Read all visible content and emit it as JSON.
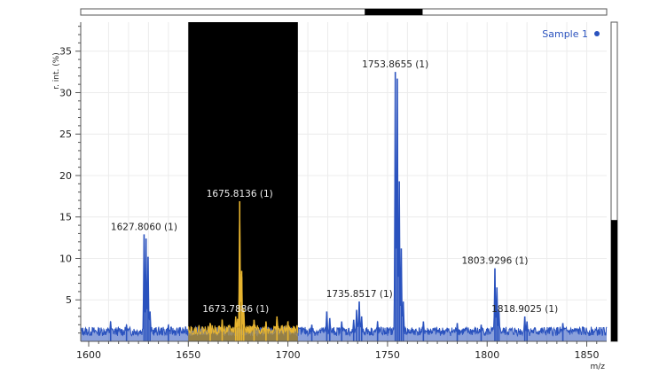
{
  "chart_data": {
    "type": "line",
    "xlabel": "m/z",
    "ylabel": "r. int. (%)",
    "xlim": [
      1596,
      1860
    ],
    "ylim": [
      0,
      38.5
    ],
    "x_ticks": [
      1600,
      1650,
      1700,
      1750,
      1800,
      1850
    ],
    "y_ticks": [
      5,
      10,
      15,
      20,
      25,
      30,
      35
    ],
    "grid": true,
    "legend_position": "top-right",
    "selection_range": [
      1650,
      1705
    ],
    "series": [
      {
        "name": "Sample 1",
        "color": "#2a52be",
        "baseline": 1.2,
        "peaks": [
          {
            "x": 1611,
            "y": 2.4
          },
          {
            "x": 1619,
            "y": 2.0
          },
          {
            "x": 1627.8,
            "y": 12.9
          },
          {
            "x": 1628.8,
            "y": 12.4
          },
          {
            "x": 1629.8,
            "y": 10.2
          },
          {
            "x": 1630.8,
            "y": 3.6
          },
          {
            "x": 1640,
            "y": 2.0
          },
          {
            "x": 1712,
            "y": 2.0
          },
          {
            "x": 1719.5,
            "y": 3.6
          },
          {
            "x": 1721,
            "y": 2.8
          },
          {
            "x": 1727,
            "y": 2.4
          },
          {
            "x": 1733,
            "y": 2.6
          },
          {
            "x": 1734.5,
            "y": 3.8
          },
          {
            "x": 1735.8,
            "y": 4.8
          },
          {
            "x": 1737,
            "y": 3.0
          },
          {
            "x": 1745,
            "y": 2.4
          },
          {
            "x": 1753.9,
            "y": 32.5
          },
          {
            "x": 1754.9,
            "y": 31.7
          },
          {
            "x": 1755.9,
            "y": 19.3
          },
          {
            "x": 1756.9,
            "y": 11.2
          },
          {
            "x": 1757.9,
            "y": 4.8
          },
          {
            "x": 1768,
            "y": 2.4
          },
          {
            "x": 1785,
            "y": 2.2
          },
          {
            "x": 1797,
            "y": 2.0
          },
          {
            "x": 1803.9,
            "y": 8.8
          },
          {
            "x": 1804.9,
            "y": 6.5
          },
          {
            "x": 1805.9,
            "y": 3.7
          },
          {
            "x": 1818.9,
            "y": 3.0
          },
          {
            "x": 1820,
            "y": 2.4
          },
          {
            "x": 1838,
            "y": 2.2
          }
        ]
      },
      {
        "name": "",
        "color": "#e8b530",
        "baseline": 1.4,
        "range": [
          1650,
          1705
        ],
        "peaks": [
          {
            "x": 1661,
            "y": 2.2
          },
          {
            "x": 1667,
            "y": 2.6
          },
          {
            "x": 1673.8,
            "y": 3.0
          },
          {
            "x": 1674.8,
            "y": 2.7
          },
          {
            "x": 1675.8,
            "y": 16.9
          },
          {
            "x": 1676.8,
            "y": 8.5
          },
          {
            "x": 1677.8,
            "y": 3.9
          },
          {
            "x": 1683,
            "y": 2.6
          },
          {
            "x": 1689,
            "y": 2.4
          },
          {
            "x": 1694.5,
            "y": 3.0
          },
          {
            "x": 1700,
            "y": 2.4
          }
        ]
      }
    ],
    "annotations": [
      {
        "text": "1627.8060 (1)",
        "x": 1627.8,
        "y": 12.9
      },
      {
        "text": "1675.8136 (1)",
        "x": 1675.8,
        "y": 16.9
      },
      {
        "text": "1673.7886 (1)",
        "x": 1673.8,
        "y": 3.0
      },
      {
        "text": "1753.8655 (1)",
        "x": 1753.9,
        "y": 32.5
      },
      {
        "text": "1735.8517 (1)",
        "x": 1735.9,
        "y": 4.8
      },
      {
        "text": "1803.9296 (1)",
        "x": 1803.9,
        "y": 8.8
      },
      {
        "text": "1818.9025 (1)",
        "x": 1818.9,
        "y": 3.0
      }
    ]
  },
  "scrollbar": {
    "h_position": 0.54,
    "h_size": 0.11,
    "v_position": 0.62,
    "v_size": 0.38
  }
}
